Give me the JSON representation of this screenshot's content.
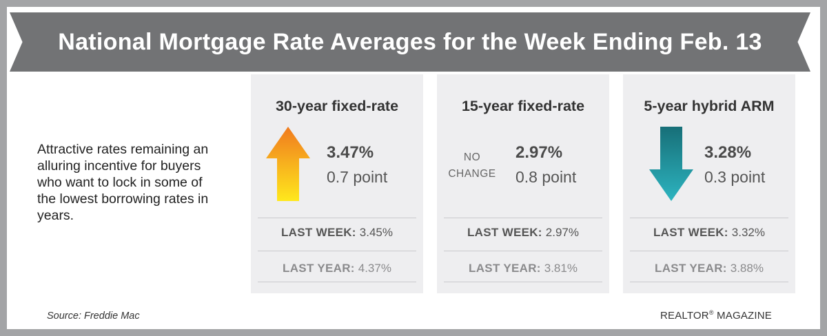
{
  "title": "National Mortgage Rate Averages for the Week Ending Feb. 13",
  "intro": "Attractive rates remaining an alluring incentive for buyers who want to lock in some of the lowest borrowing rates in years.",
  "cards": [
    {
      "title": "30-year fixed-rate",
      "direction": "up",
      "icon": "arrow-up-icon",
      "rate": "3.47%",
      "change": "0.7 point",
      "last_week_label": "LAST WEEK:",
      "last_week_value": "3.45%",
      "last_year_label": "LAST YEAR:",
      "last_year_value": "4.37%"
    },
    {
      "title": "15-year fixed-rate",
      "direction": "none",
      "status": "NO CHANGE",
      "status_line1": "NO",
      "status_line2": "CHANGE",
      "rate": "2.97%",
      "change": "0.8 point",
      "last_week_label": "LAST WEEK:",
      "last_week_value": "2.97%",
      "last_year_label": "LAST YEAR:",
      "last_year_value": "3.81%"
    },
    {
      "title": "5-year hybrid ARM",
      "direction": "down",
      "icon": "arrow-down-icon",
      "rate": "3.28%",
      "change": "0.3 point",
      "last_week_label": "LAST WEEK:",
      "last_week_value": "3.32%",
      "last_year_label": "LAST YEAR:",
      "last_year_value": "3.88%"
    }
  ],
  "source": "Source: Freddie Mac",
  "brand": "REALTOR",
  "brand_mark": "®",
  "brand_suffix": "MAGAZINE",
  "colors": {
    "ribbon": "#727375",
    "border": "#a3a4a6",
    "card_bg": "#eeeef0",
    "arrow_up_top": "#f07a1e",
    "arrow_up_bottom": "#ffe81d",
    "arrow_down_top": "#176f78",
    "arrow_down_bottom": "#2db4c0"
  }
}
